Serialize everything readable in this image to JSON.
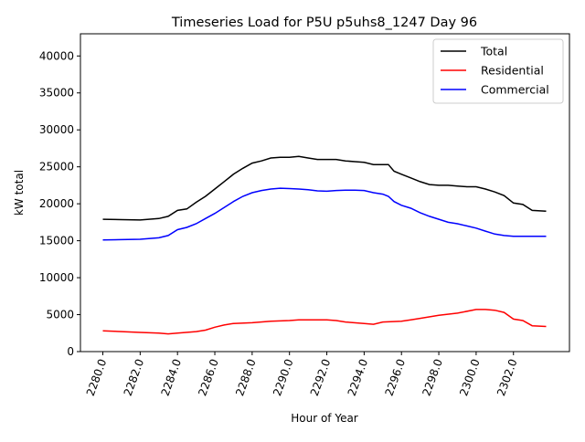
{
  "chart_data": {
    "type": "line",
    "title": "Timeseries Load for P5U p5uhs8_1247  Day 96",
    "xlabel": "Hour of Year",
    "ylabel": "kW total",
    "xlim": [
      2278.8,
      2305
    ],
    "ylim": [
      0,
      43000
    ],
    "xticks": [
      2280,
      2282,
      2284,
      2286,
      2288,
      2290,
      2292,
      2294,
      2296,
      2298,
      2300,
      2302
    ],
    "xtick_labels": [
      "2280.0",
      "2282.0",
      "2284.0",
      "2286.0",
      "2288.0",
      "2290.0",
      "2292.0",
      "2294.0",
      "2296.0",
      "2298.0",
      "2300.0",
      "2302.0"
    ],
    "yticks": [
      0,
      5000,
      10000,
      15000,
      20000,
      25000,
      30000,
      35000,
      40000
    ],
    "ytick_labels": [
      "0",
      "5000",
      "10000",
      "15000",
      "20000",
      "25000",
      "30000",
      "35000",
      "40000"
    ],
    "legend_position": "top-right",
    "grid": false,
    "series": [
      {
        "name": "Total",
        "color": "#000000",
        "x": [
          2280,
          2281,
          2282,
          2283,
          2283.5,
          2284,
          2284.5,
          2285,
          2285.5,
          2286,
          2286.5,
          2287,
          2287.5,
          2288,
          2288.5,
          2289,
          2289.5,
          2290,
          2290.5,
          2291,
          2291.5,
          2292,
          2292.5,
          2293,
          2293.5,
          2294,
          2294.5,
          2295,
          2295.3,
          2295.6,
          2296,
          2296.5,
          2297,
          2297.5,
          2298,
          2298.5,
          2299,
          2299.5,
          2300,
          2300.5,
          2301,
          2301.5,
          2302,
          2302.5,
          2303,
          2303.75
        ],
        "y": [
          17900,
          17850,
          17800,
          18000,
          18300,
          19100,
          19300,
          20200,
          21000,
          22000,
          23000,
          24000,
          24800,
          25500,
          25800,
          26200,
          26300,
          26300,
          26400,
          26200,
          26000,
          26000,
          26000,
          25800,
          25700,
          25600,
          25300,
          25300,
          25300,
          24400,
          24000,
          23500,
          23000,
          22600,
          22500,
          22500,
          22400,
          22300,
          22300,
          22000,
          21600,
          21100,
          20100,
          19900,
          19100,
          19000
        ]
      },
      {
        "name": "Residential",
        "color": "#ff0000",
        "x": [
          2280,
          2281,
          2282,
          2283,
          2283.5,
          2284,
          2285,
          2285.5,
          2286,
          2286.5,
          2287,
          2288,
          2289,
          2290,
          2290.5,
          2291,
          2292,
          2292.5,
          2293,
          2294,
          2294.5,
          2295,
          2296,
          2296.5,
          2297,
          2298,
          2299,
          2300,
          2300.5,
          2301,
          2301.5,
          2302,
          2302.5,
          2303,
          2303.75
        ],
        "y": [
          2800,
          2700,
          2600,
          2500,
          2400,
          2500,
          2700,
          2900,
          3300,
          3600,
          3800,
          3900,
          4100,
          4200,
          4300,
          4300,
          4300,
          4200,
          4000,
          3800,
          3700,
          4000,
          4100,
          4300,
          4500,
          4900,
          5200,
          5700,
          5700,
          5600,
          5300,
          4400,
          4200,
          3500,
          3400
        ]
      },
      {
        "name": "Commercial",
        "color": "#0000ff",
        "x": [
          2280,
          2281,
          2282,
          2283,
          2283.5,
          2284,
          2284.5,
          2285,
          2285.5,
          2286,
          2286.5,
          2287,
          2287.5,
          2288,
          2288.5,
          2289,
          2289.5,
          2290,
          2290.5,
          2291,
          2291.5,
          2292,
          2292.5,
          2293,
          2293.5,
          2294,
          2294.5,
          2295,
          2295.3,
          2295.6,
          2296,
          2296.5,
          2297,
          2297.5,
          2298,
          2298.5,
          2299,
          2299.5,
          2300,
          2300.5,
          2301,
          2301.5,
          2302,
          2303,
          2303.75
        ],
        "y": [
          15100,
          15150,
          15200,
          15400,
          15700,
          16500,
          16800,
          17300,
          18000,
          18700,
          19500,
          20300,
          21000,
          21500,
          21800,
          22000,
          22100,
          22050,
          22000,
          21900,
          21750,
          21700,
          21800,
          21850,
          21850,
          21800,
          21500,
          21300,
          21000,
          20300,
          19800,
          19400,
          18800,
          18300,
          17900,
          17500,
          17300,
          17000,
          16700,
          16300,
          15900,
          15700,
          15600,
          15600,
          15600
        ]
      }
    ]
  }
}
